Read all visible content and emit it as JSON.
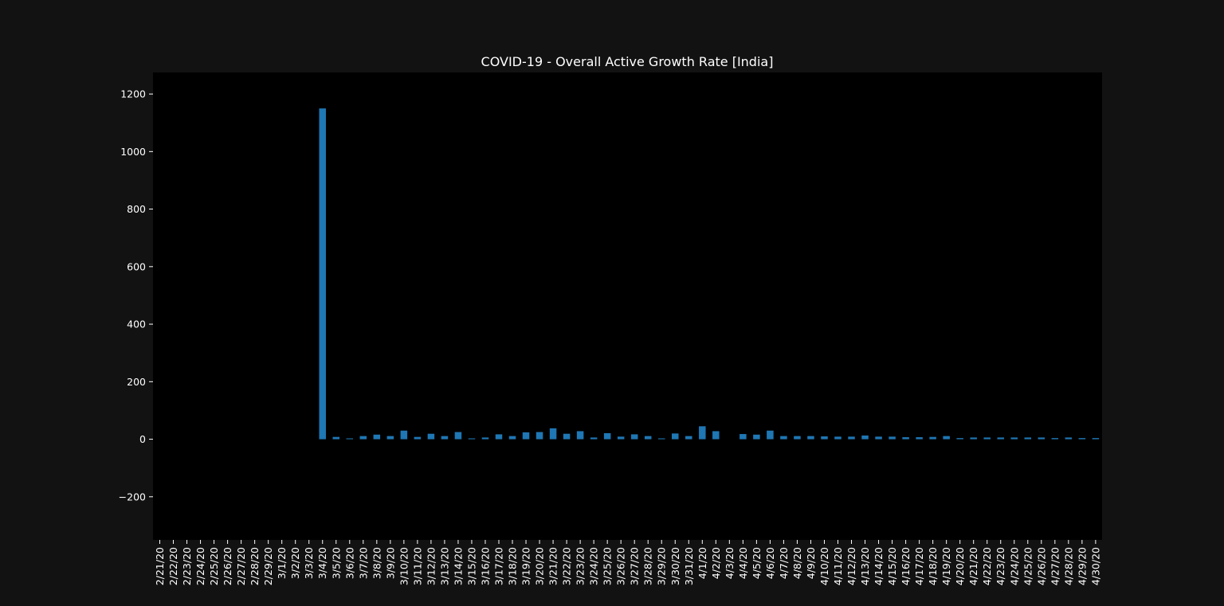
{
  "colors": {
    "figure_background": "#121212",
    "plot_background": "#000000",
    "bar": "#1f77b4",
    "text": "#ffffff"
  },
  "chart_data": {
    "type": "bar",
    "title": "COVID-19 - Overall Active Growth Rate [India]",
    "xlabel": "",
    "ylabel": "",
    "ylim": [
      -350,
      1275
    ],
    "yticks": [
      -200,
      0,
      200,
      400,
      600,
      800,
      1000,
      1200
    ],
    "ytick_labels": [
      "−200",
      "0",
      "200",
      "400",
      "600",
      "800",
      "1000",
      "1200"
    ],
    "grid": false,
    "legend": "none",
    "categories": [
      "2/21/20",
      "2/22/20",
      "2/23/20",
      "2/24/20",
      "2/25/20",
      "2/26/20",
      "2/27/20",
      "2/28/20",
      "2/29/20",
      "3/1/20",
      "3/2/20",
      "3/3/20",
      "3/4/20",
      "3/5/20",
      "3/6/20",
      "3/7/20",
      "3/8/20",
      "3/9/20",
      "3/10/20",
      "3/11/20",
      "3/12/20",
      "3/13/20",
      "3/14/20",
      "3/15/20",
      "3/16/20",
      "3/17/20",
      "3/18/20",
      "3/19/20",
      "3/20/20",
      "3/21/20",
      "3/22/20",
      "3/23/20",
      "3/24/20",
      "3/25/20",
      "3/26/20",
      "3/27/20",
      "3/28/20",
      "3/29/20",
      "3/30/20",
      "3/31/20",
      "4/1/20",
      "4/2/20",
      "4/3/20",
      "4/4/20",
      "4/5/20",
      "4/6/20",
      "4/7/20",
      "4/8/20",
      "4/9/20",
      "4/10/20",
      "4/11/20",
      "4/12/20",
      "4/13/20",
      "4/14/20",
      "4/15/20",
      "4/16/20",
      "4/17/20",
      "4/18/20",
      "4/19/20",
      "4/20/20",
      "4/21/20",
      "4/22/20",
      "4/23/20",
      "4/24/20",
      "4/25/20",
      "4/26/20",
      "4/27/20",
      "4/28/20",
      "4/29/20",
      "4/30/20"
    ],
    "values": [
      0,
      0,
      0,
      0,
      0,
      0,
      0,
      0,
      0,
      0,
      0,
      0,
      1150,
      8,
      3,
      11,
      16,
      11,
      30,
      8,
      19,
      11,
      25,
      3,
      6,
      17,
      11,
      24,
      25,
      38,
      19,
      28,
      6,
      21,
      9,
      17,
      11,
      3,
      20,
      11,
      45,
      28,
      0,
      18,
      16,
      30,
      11,
      11,
      11,
      10,
      9,
      9,
      13,
      9,
      9,
      7,
      7,
      8,
      11,
      4,
      6,
      6,
      6,
      6,
      6,
      6,
      4,
      6,
      4,
      4
    ]
  }
}
